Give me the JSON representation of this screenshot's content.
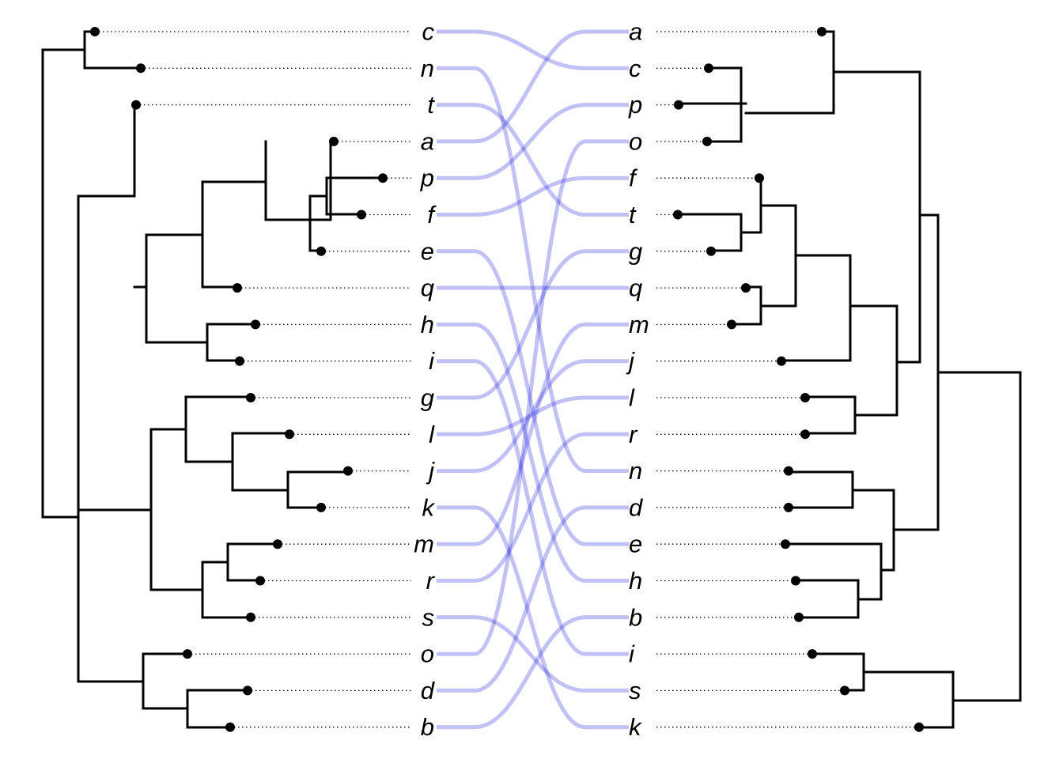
{
  "left_labels": [
    "c",
    "n",
    "t",
    "a",
    "p",
    "f",
    "e",
    "q",
    "h",
    "i",
    "g",
    "l",
    "j",
    "k",
    "m",
    "r",
    "s",
    "o",
    "d",
    "b"
  ],
  "right_labels": [
    "a",
    "c",
    "p",
    "o",
    "f",
    "t",
    "g",
    "q",
    "m",
    "j",
    "l",
    "r",
    "n",
    "d",
    "e",
    "h",
    "b",
    "i",
    "s",
    "k"
  ],
  "line_color": "#1f1fe0",
  "tree_color": "#000000"
}
